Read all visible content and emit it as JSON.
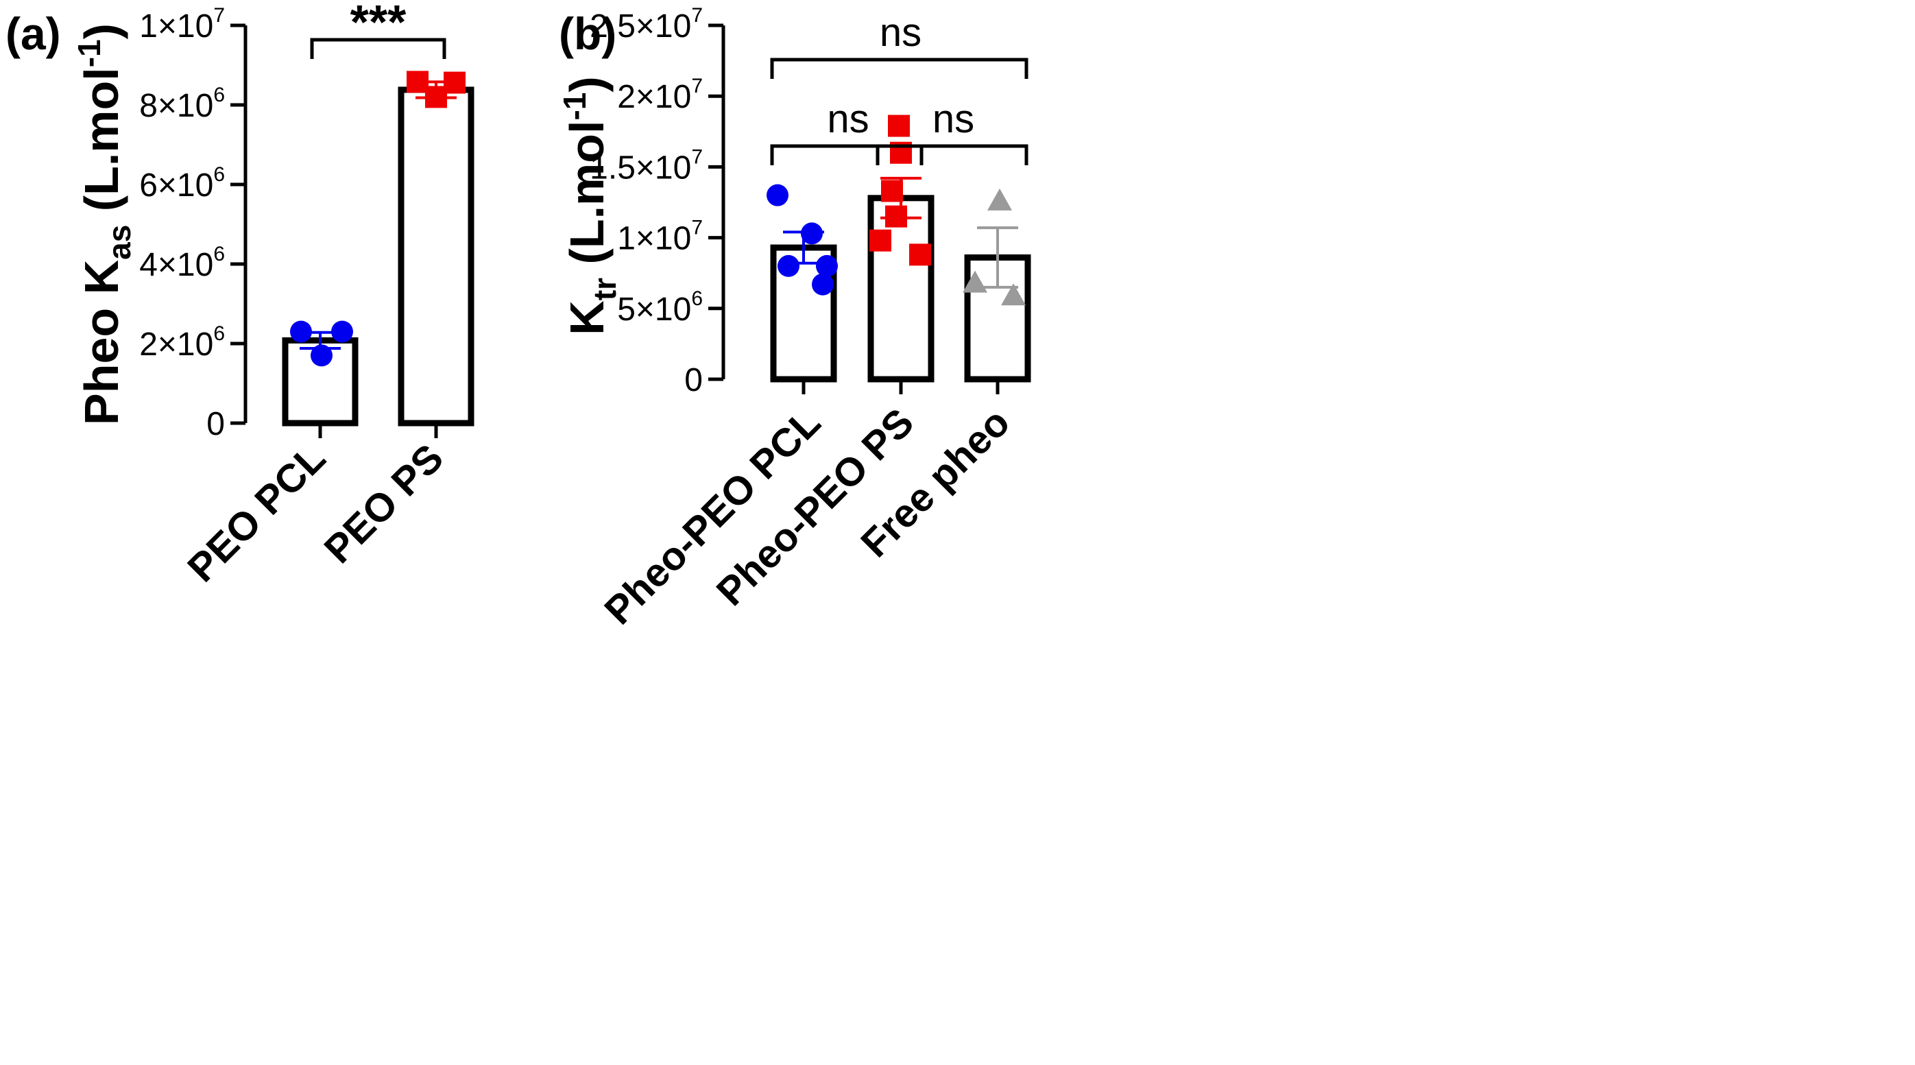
{
  "colors": {
    "PCL": "#0000ee",
    "PS": "#ee0000",
    "free": "#9a9a9a",
    "axis": "#000000"
  },
  "chart_data": [
    {
      "type": "bar",
      "panel_label": "(a)",
      "ylabel": {
        "main": "Pheo K",
        "sub": "as",
        "tail": " (L.mol",
        "sup": "-1",
        "end": ")"
      },
      "ylim": [
        0,
        10000000
      ],
      "yticks": [
        {
          "value": 0,
          "mantissa": "0",
          "exponent": ""
        },
        {
          "value": 2000000,
          "mantissa": "2×10",
          "exponent": "6"
        },
        {
          "value": 4000000,
          "mantissa": "4×10",
          "exponent": "6"
        },
        {
          "value": 6000000,
          "mantissa": "6×10",
          "exponent": "6"
        },
        {
          "value": 8000000,
          "mantissa": "8×10",
          "exponent": "6"
        },
        {
          "value": 10000000,
          "mantissa": "1×10",
          "exponent": "7"
        }
      ],
      "categories": [
        "PEO PCL",
        "PEO PS"
      ],
      "series": [
        {
          "name": "PEO PCL",
          "mean": 2080000,
          "error": 200000,
          "marker": "circle",
          "color_key": "PCL",
          "points": [
            2300000,
            2300000,
            1700000
          ]
        },
        {
          "name": "PEO PS",
          "mean": 8380000,
          "error": 200000,
          "marker": "square",
          "color_key": "PS",
          "points": [
            8580000,
            8560000,
            8200000
          ]
        }
      ],
      "comparisons": [
        {
          "from": 0,
          "to": 1,
          "label": "***"
        }
      ]
    },
    {
      "type": "bar",
      "panel_label": "(b)",
      "ylabel": {
        "main": "K",
        "sub": "tr",
        "tail": " (L.mol",
        "sup": "-1",
        "end": ")"
      },
      "ylim": [
        0,
        25000000
      ],
      "yticks": [
        {
          "value": 0,
          "mantissa": "0",
          "exponent": ""
        },
        {
          "value": 5000000,
          "mantissa": "5×10",
          "exponent": "6"
        },
        {
          "value": 10000000,
          "mantissa": "1×10",
          "exponent": "7"
        },
        {
          "value": 15000000,
          "mantissa": "1.5×10",
          "exponent": "7"
        },
        {
          "value": 20000000,
          "mantissa": "2×10",
          "exponent": "7"
        },
        {
          "value": 25000000,
          "mantissa": "2.5×10",
          "exponent": "7"
        }
      ],
      "categories": [
        "Pheo-PEO PCL",
        "Pheo-PEO PS",
        "Free pheo"
      ],
      "series": [
        {
          "name": "Pheo-PEO PCL",
          "mean": 9300000,
          "error": 1100000,
          "marker": "circle",
          "color_key": "PCL",
          "points": [
            13000000,
            10300000,
            8000000,
            8000000,
            6700000
          ]
        },
        {
          "name": "Pheo-PEO PS",
          "mean": 12800000,
          "error": 1400000,
          "marker": "square",
          "color_key": "PS",
          "points": [
            17900000,
            16000000,
            13300000,
            11500000,
            9800000,
            8800000
          ]
        },
        {
          "name": "Free pheo",
          "mean": 8600000,
          "error": 2100000,
          "marker": "triangle",
          "color_key": "free",
          "points": [
            12600000,
            6800000,
            5900000
          ]
        }
      ],
      "comparisons": [
        {
          "from": 0,
          "to": 2,
          "label": "ns"
        },
        {
          "from": 0,
          "to": 1,
          "label": "ns"
        },
        {
          "from": 1,
          "to": 2,
          "label": "ns"
        }
      ]
    }
  ]
}
